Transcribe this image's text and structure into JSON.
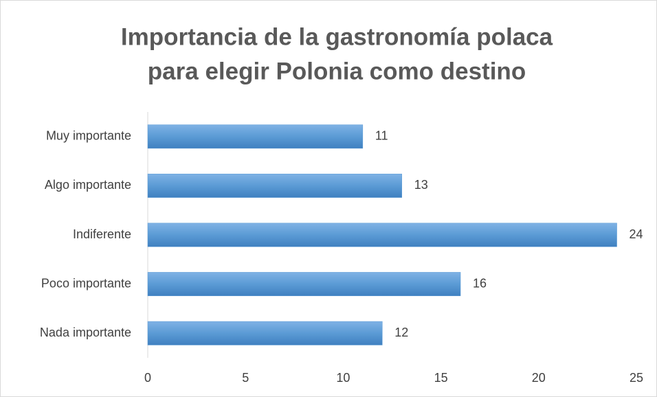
{
  "chart_data": {
    "type": "bar",
    "orientation": "horizontal",
    "title": [
      "Importancia de la gastronomía polaca",
      "para elegir Polonia como destino"
    ],
    "categories": [
      "Muy importante",
      "Algo importante",
      "Indiferente",
      "Poco importante",
      "Nada importante"
    ],
    "values": [
      11,
      13,
      24,
      16,
      12
    ],
    "color": "#5b9bd5",
    "xlim": [
      0,
      25
    ],
    "xticks": [
      0,
      5,
      10,
      15,
      20,
      25
    ],
    "grid": false
  }
}
